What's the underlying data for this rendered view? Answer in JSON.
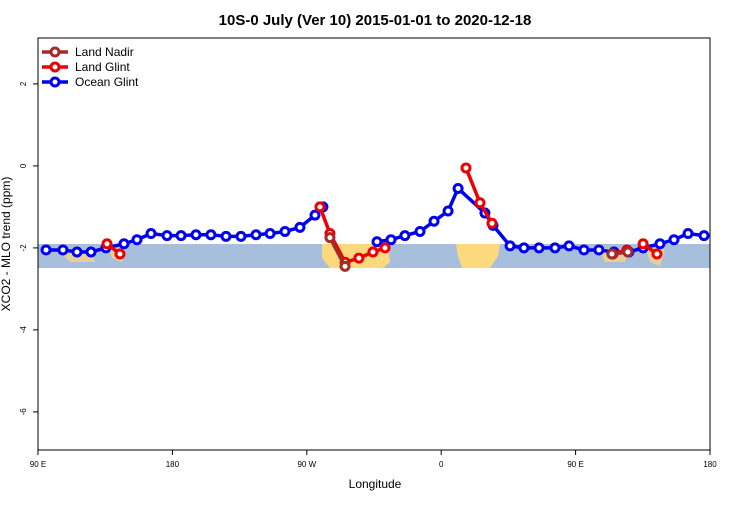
{
  "chart_data": {
    "type": "line",
    "title": "10S-0 July (Ver 10)   2015-01-01 to 2020-12-18",
    "x_label": "Longitude",
    "y_label": "XCO2 - MLO trend (ppm)",
    "xlim": [
      90,
      540
    ],
    "xticks": [
      {
        "value": 90,
        "label": "90 E"
      },
      180,
      {
        "value": 270,
        "label": "90 W"
      },
      {
        "value": 360,
        "label": "0"
      },
      {
        "value": 450,
        "label": "90 E"
      },
      {
        "value": 540,
        "label": "180"
      }
    ],
    "ylim": [
      -6.93,
      3.12
    ],
    "yticks": [
      2,
      0,
      -2,
      -4,
      -6
    ],
    "legend": "top-left",
    "series": [
      {
        "name": "Land Nadir",
        "color": "#a52a2a",
        "x": [
          285.5,
          295.6,
          null,
          474.3,
          485.0
        ],
        "values": [
          -1.75,
          -2.45,
          null,
          -2.15,
          -2.1
        ]
      },
      {
        "name": "Land Glint",
        "color": "#ee0000",
        "x": [
          136.2,
          144.9,
          null,
          278.8,
          285.5,
          295.6,
          304.9,
          314.3,
          322.4,
          null,
          376.6,
          386.0,
          394.0,
          null,
          475.0,
          484.4,
          null,
          495.2,
          504.5
        ],
        "values": [
          -1.9,
          -2.15,
          null,
          -1.0,
          -1.65,
          -2.35,
          -2.25,
          -2.1,
          -2.0,
          null,
          -0.05,
          -0.9,
          -1.4,
          null,
          -2.15,
          -2.05,
          null,
          -1.9,
          -2.15
        ]
      },
      {
        "name": "Ocean Glint",
        "color": "#0000ee",
        "x": [
          95.4,
          106.7,
          116.1,
          125.5,
          135.5,
          147.6,
          156.3,
          165.7,
          176.4,
          185.8,
          195.8,
          205.8,
          215.9,
          225.9,
          236.0,
          245.4,
          255.4,
          265.4,
          275.5,
          280.8,
          null,
          317.0,
          326.4,
          335.7,
          345.8,
          355.2,
          364.6,
          371.3,
          389.3,
          394.7,
          406.1,
          415.4,
          425.5,
          436.2,
          445.6,
          455.6,
          465.6,
          475.7,
          485.7,
          495.2,
          506.5,
          515.9,
          525.3,
          536.0
        ],
        "values": [
          -2.05,
          -2.05,
          -2.1,
          -2.1,
          -2.0,
          -1.9,
          -1.8,
          -1.65,
          -1.7,
          -1.7,
          -1.68,
          -1.68,
          -1.72,
          -1.72,
          -1.68,
          -1.65,
          -1.6,
          -1.5,
          -1.2,
          -1.0,
          null,
          -1.85,
          -1.8,
          -1.7,
          -1.6,
          -1.35,
          -1.1,
          -0.55,
          -1.15,
          -1.45,
          -1.95,
          -2.0,
          -2.0,
          -2.0,
          -1.95,
          -2.05,
          -2.05,
          -2.1,
          -2.1,
          -2.0,
          -1.9,
          -1.8,
          -1.65,
          -1.7
        ]
      }
    ]
  }
}
